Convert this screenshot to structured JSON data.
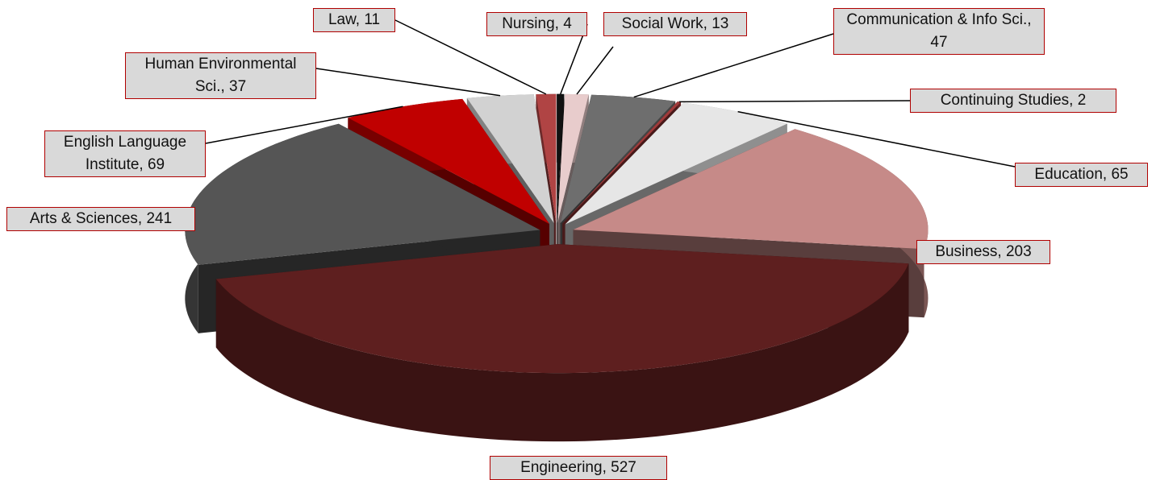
{
  "chart_data": {
    "type": "pie",
    "values": [
      4,
      13,
      47,
      2,
      65,
      203,
      527,
      241,
      69,
      37,
      11
    ],
    "value_labels": [
      "Nursing, 4",
      "Social Work, 13",
      "Communication & Info Sci., 47",
      "Continuing Studies, 2",
      "Education, 65",
      "Business, 203",
      "Engineering, 527",
      "Arts & Sciences, 241",
      "English Language Institute, 69",
      "Human Environmental Sci., 37",
      "Law, 11"
    ],
    "colors": [
      "#111111",
      "#e8cccc",
      "#6e6e6e",
      "#a03a3a",
      "#e6e6e6",
      "#c68a88",
      "#5e1f1f",
      "#555555",
      "#c00000",
      "#d2d2d2",
      "#b04444"
    ]
  }
}
